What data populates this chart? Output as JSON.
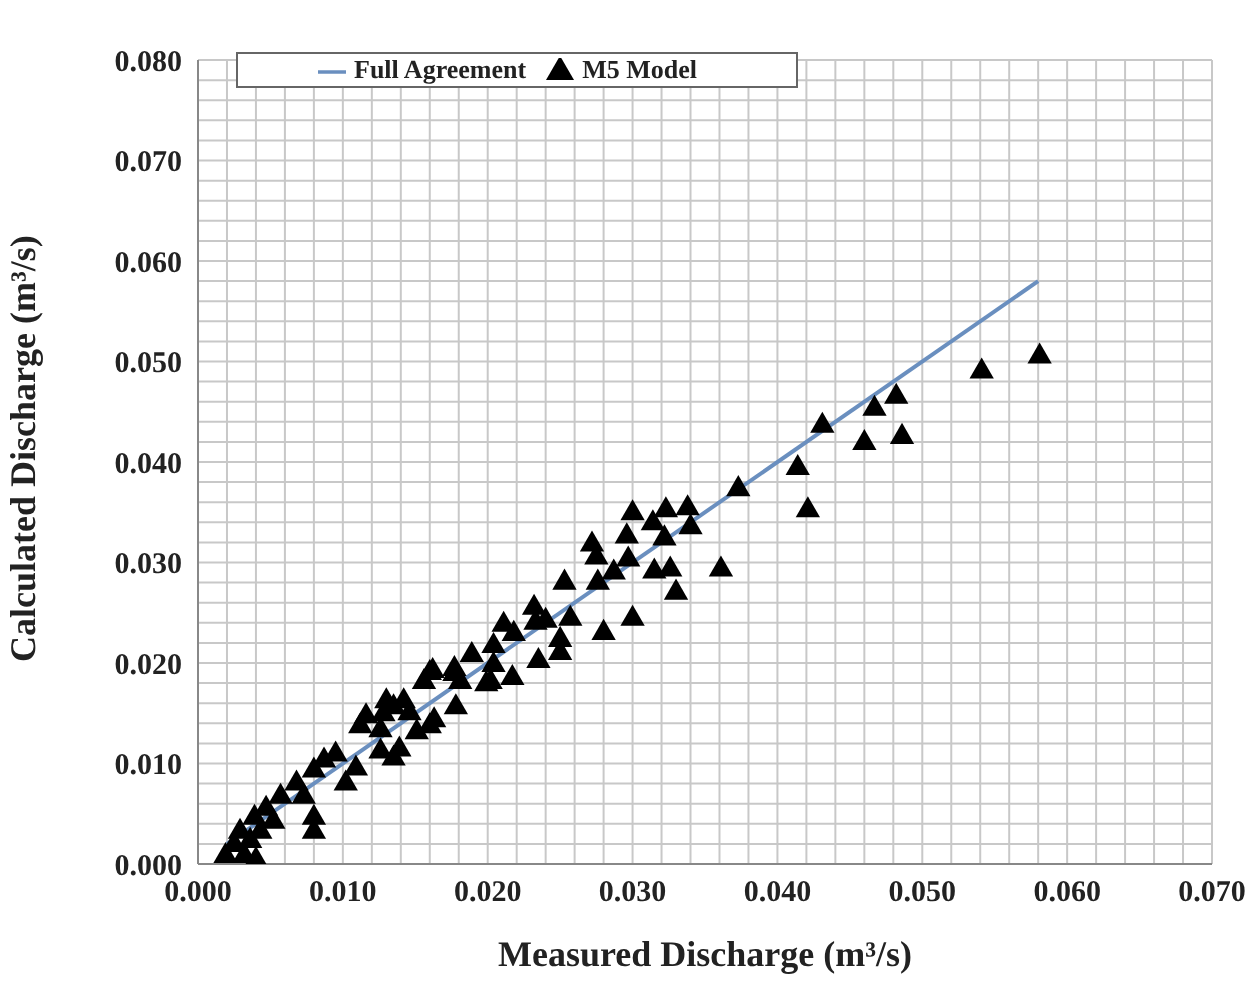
{
  "chart_data": {
    "type": "scatter",
    "xlabel": "Measured Discharge (m³/s)",
    "ylabel": "Calculated Discharge (m³/s)",
    "xlim": [
      0,
      0.07
    ],
    "ylim": [
      0,
      0.08
    ],
    "xticks": [
      {
        "value": 0,
        "label": "0.000"
      },
      {
        "value": 0.002,
        "label": null
      },
      {
        "value": 0.004,
        "label": null
      },
      {
        "value": 0.006,
        "label": null
      },
      {
        "value": 0.008,
        "label": null
      },
      {
        "value": 0.01,
        "label": "0.010"
      },
      {
        "value": 0.012,
        "label": null
      },
      {
        "value": 0.014,
        "label": null
      },
      {
        "value": 0.016,
        "label": null
      },
      {
        "value": 0.018,
        "label": null
      },
      {
        "value": 0.02,
        "label": "0.020"
      },
      {
        "value": 0.022,
        "label": null
      },
      {
        "value": 0.024,
        "label": null
      },
      {
        "value": 0.026,
        "label": null
      },
      {
        "value": 0.028,
        "label": null
      },
      {
        "value": 0.03,
        "label": "0.030"
      },
      {
        "value": 0.032,
        "label": null
      },
      {
        "value": 0.034,
        "label": null
      },
      {
        "value": 0.036,
        "label": null
      },
      {
        "value": 0.038,
        "label": null
      },
      {
        "value": 0.04,
        "label": "0.040"
      },
      {
        "value": 0.042,
        "label": null
      },
      {
        "value": 0.044,
        "label": null
      },
      {
        "value": 0.046,
        "label": null
      },
      {
        "value": 0.048,
        "label": null
      },
      {
        "value": 0.05,
        "label": "0.050"
      },
      {
        "value": 0.052,
        "label": null
      },
      {
        "value": 0.054,
        "label": null
      },
      {
        "value": 0.056,
        "label": null
      },
      {
        "value": 0.058,
        "label": null
      },
      {
        "value": 0.06,
        "label": "0.060"
      },
      {
        "value": 0.062,
        "label": null
      },
      {
        "value": 0.064,
        "label": null
      },
      {
        "value": 0.066,
        "label": null
      },
      {
        "value": 0.068,
        "label": null
      },
      {
        "value": 0.07,
        "label": "0.070"
      }
    ],
    "yticks": [
      {
        "value": 0,
        "label": "0.000"
      },
      {
        "value": 0.002,
        "label": null
      },
      {
        "value": 0.004,
        "label": null
      },
      {
        "value": 0.006,
        "label": null
      },
      {
        "value": 0.008,
        "label": null
      },
      {
        "value": 0.01,
        "label": "0.010"
      },
      {
        "value": 0.012,
        "label": null
      },
      {
        "value": 0.014,
        "label": null
      },
      {
        "value": 0.016,
        "label": null
      },
      {
        "value": 0.018,
        "label": null
      },
      {
        "value": 0.02,
        "label": "0.020"
      },
      {
        "value": 0.022,
        "label": null
      },
      {
        "value": 0.024,
        "label": null
      },
      {
        "value": 0.026,
        "label": null
      },
      {
        "value": 0.028,
        "label": null
      },
      {
        "value": 0.03,
        "label": "0.030"
      },
      {
        "value": 0.032,
        "label": null
      },
      {
        "value": 0.034,
        "label": null
      },
      {
        "value": 0.036,
        "label": null
      },
      {
        "value": 0.038,
        "label": null
      },
      {
        "value": 0.04,
        "label": "0.040"
      },
      {
        "value": 0.042,
        "label": null
      },
      {
        "value": 0.044,
        "label": null
      },
      {
        "value": 0.046,
        "label": null
      },
      {
        "value": 0.048,
        "label": null
      },
      {
        "value": 0.05,
        "label": "0.050"
      },
      {
        "value": 0.052,
        "label": null
      },
      {
        "value": 0.054,
        "label": null
      },
      {
        "value": 0.056,
        "label": null
      },
      {
        "value": 0.058,
        "label": null
      },
      {
        "value": 0.06,
        "label": "0.060"
      },
      {
        "value": 0.062,
        "label": null
      },
      {
        "value": 0.064,
        "label": null
      },
      {
        "value": 0.066,
        "label": null
      },
      {
        "value": 0.068,
        "label": null
      },
      {
        "value": 0.07,
        "label": "0.070"
      },
      {
        "value": 0.072,
        "label": null
      },
      {
        "value": 0.074,
        "label": null
      },
      {
        "value": 0.076,
        "label": null
      },
      {
        "value": 0.078,
        "label": null
      },
      {
        "value": 0.08,
        "label": "0.080"
      }
    ],
    "grid": true,
    "legend": "top left",
    "series": [
      {
        "name": "Full Agreement",
        "type": "line",
        "color": "#6a8fbf",
        "line_style": "solid",
        "x": [
          0.002,
          0.058
        ],
        "values": [
          0.002,
          0.058
        ]
      },
      {
        "name": "M5 Model",
        "color": "#000000",
        "marker": "triangle",
        "x": [
          0.0581,
          0.0541,
          0.0482,
          0.0467,
          0.0486,
          0.046,
          0.0431,
          0.0414,
          0.0421,
          0.0373,
          0.0361,
          0.0338,
          0.0323,
          0.034,
          0.0322,
          0.0326,
          0.033,
          0.03,
          0.0314,
          0.0296,
          0.0272,
          0.0275,
          0.0297,
          0.0287,
          0.0315,
          0.0276,
          0.0253,
          0.03,
          0.028,
          0.0232,
          0.024,
          0.0257,
          0.0211,
          0.0233,
          0.025,
          0.0218,
          0.0204,
          0.025,
          0.0235,
          0.0189,
          0.0204,
          0.0177,
          0.0217,
          0.0162,
          0.0202,
          0.0156,
          0.0181,
          0.0178,
          0.013,
          0.0142,
          0.0128,
          0.0146,
          0.0163,
          0.0116,
          0.0199,
          0.016,
          0.0177,
          0.0135,
          0.0112,
          0.0126,
          0.016,
          0.0151,
          0.0139,
          0.0126,
          0.0095,
          0.0087,
          0.0135,
          0.0109,
          0.008,
          0.0102,
          0.0068,
          0.0057,
          0.0073,
          0.008,
          0.008,
          0.0047,
          0.0039,
          0.0052,
          0.0029,
          0.0043,
          0.0025,
          0.0036,
          0.0019,
          0.0032,
          0.004
        ],
        "values": [
          0.0505,
          0.049,
          0.0465,
          0.0453,
          0.0425,
          0.0419,
          0.0436,
          0.0394,
          0.0352,
          0.0373,
          0.0293,
          0.0354,
          0.0352,
          0.0335,
          0.0324,
          0.0293,
          0.027,
          0.0349,
          0.0339,
          0.0326,
          0.0318,
          0.0305,
          0.0303,
          0.029,
          0.0291,
          0.028,
          0.028,
          0.0244,
          0.023,
          0.0255,
          0.0242,
          0.0244,
          0.0238,
          0.024,
          0.0223,
          0.0229,
          0.0217,
          0.021,
          0.0202,
          0.0208,
          0.0198,
          0.0194,
          0.0185,
          0.0192,
          0.0181,
          0.0181,
          0.0181,
          0.0156,
          0.0162,
          0.0162,
          0.0149,
          0.015,
          0.0143,
          0.0147,
          0.0179,
          0.019,
          0.0189,
          0.0156,
          0.0137,
          0.0133,
          0.0137,
          0.0131,
          0.0114,
          0.0112,
          0.0109,
          0.0103,
          0.0105,
          0.0095,
          0.0093,
          0.008,
          0.008,
          0.0067,
          0.0067,
          0.0046,
          0.0032,
          0.0055,
          0.0046,
          0.0042,
          0.0032,
          0.0032,
          0.0019,
          0.0023,
          0.0008,
          0.0008,
          0.0004
        ]
      }
    ]
  }
}
